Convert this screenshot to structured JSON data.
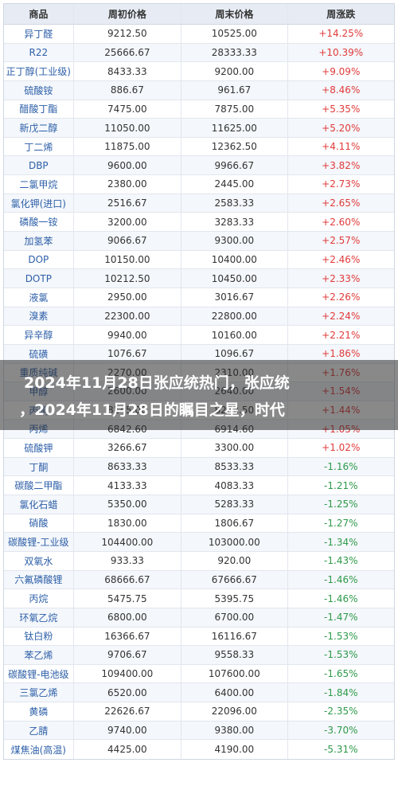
{
  "table": {
    "headers": [
      "商品",
      "周初价格",
      "周末价格",
      "周涨跌"
    ],
    "rows": [
      [
        "异丁醛",
        "9212.50",
        "10525.00",
        "+14.25%"
      ],
      [
        "R22",
        "25666.67",
        "28333.33",
        "+10.39%"
      ],
      [
        "正丁醇(工业级)",
        "8433.33",
        "9200.00",
        "+9.09%"
      ],
      [
        "硫酸铵",
        "886.67",
        "961.67",
        "+8.46%"
      ],
      [
        "醋酸丁酯",
        "7475.00",
        "7875.00",
        "+5.35%"
      ],
      [
        "新戊二醇",
        "11050.00",
        "11625.00",
        "+5.20%"
      ],
      [
        "丁二烯",
        "11875.00",
        "12362.50",
        "+4.11%"
      ],
      [
        "DBP",
        "9600.00",
        "9966.67",
        "+3.82%"
      ],
      [
        "二氯甲烷",
        "2380.00",
        "2445.00",
        "+2.73%"
      ],
      [
        "氯化钾(进口)",
        "2516.67",
        "2583.33",
        "+2.65%"
      ],
      [
        "磷酸一铵",
        "3200.00",
        "3283.33",
        "+2.60%"
      ],
      [
        "加氢苯",
        "9066.67",
        "9300.00",
        "+2.57%"
      ],
      [
        "DOP",
        "10150.00",
        "10400.00",
        "+2.46%"
      ],
      [
        "DOTP",
        "10212.50",
        "10450.00",
        "+2.33%"
      ],
      [
        "液氯",
        "2950.00",
        "3016.67",
        "+2.26%"
      ],
      [
        "溴素",
        "22300.00",
        "22800.00",
        "+2.24%"
      ],
      [
        "异辛醇",
        "9940.00",
        "10160.00",
        "+2.21%"
      ],
      [
        "硫磺",
        "1076.67",
        "1096.67",
        "+1.86%"
      ],
      [
        "重质纯碱",
        "2270.00",
        "2310.00",
        "+1.76%"
      ],
      [
        "甲醇",
        "2600.00",
        "2640.00",
        "+1.54%"
      ],
      [
        "丙酮",
        "8145.00",
        "8262.50",
        "+1.44%"
      ],
      [
        "丙烯",
        "6842.60",
        "6914.60",
        "+1.05%"
      ],
      [
        "硫酸钾",
        "3266.67",
        "3300.00",
        "+1.02%"
      ],
      [
        "丁酮",
        "8633.33",
        "8533.33",
        "-1.16%"
      ],
      [
        "碳酸二甲酯",
        "4133.33",
        "4083.33",
        "-1.21%"
      ],
      [
        "氯化石蜡",
        "5350.00",
        "5283.33",
        "-1.25%"
      ],
      [
        "硝酸",
        "1830.00",
        "1806.67",
        "-1.27%"
      ],
      [
        "碳酸锂-工业级",
        "104400.00",
        "103000.00",
        "-1.34%"
      ],
      [
        "双氧水",
        "933.33",
        "920.00",
        "-1.43%"
      ],
      [
        "六氟磷酸锂",
        "68666.67",
        "67666.67",
        "-1.46%"
      ],
      [
        "丙烷",
        "5475.75",
        "5395.75",
        "-1.46%"
      ],
      [
        "环氧乙烷",
        "6800.00",
        "6700.00",
        "-1.47%"
      ],
      [
        "钛白粉",
        "16366.67",
        "16116.67",
        "-1.53%"
      ],
      [
        "苯乙烯",
        "9706.67",
        "9558.33",
        "-1.53%"
      ],
      [
        "碳酸锂-电池级",
        "109400.00",
        "107600.00",
        "-1.65%"
      ],
      [
        "三氯乙烯",
        "6520.00",
        "6400.00",
        "-1.84%"
      ],
      [
        "黄磷",
        "22626.67",
        "22096.00",
        "-2.35%"
      ],
      [
        "乙腈",
        "9740.00",
        "9380.00",
        "-3.70%"
      ],
      [
        "煤焦油(高温)",
        "4425.00",
        "4190.00",
        "-5.31%"
      ]
    ]
  },
  "banner": {
    "line1": "2024年11月28日张应统热门，张应统",
    "line2": "，2024年11月28日的瞩目之星，时代"
  },
  "colors": {
    "up": "#e03b3b",
    "down": "#2e9a4a",
    "name": "#2d5fa8"
  }
}
